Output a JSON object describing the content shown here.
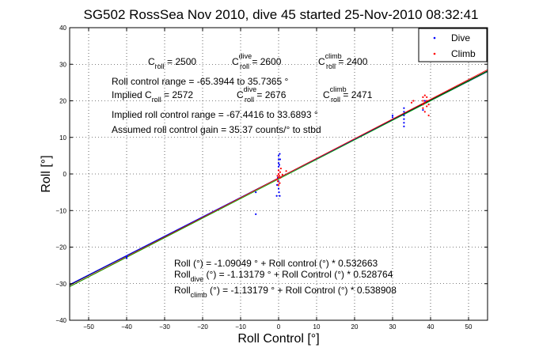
{
  "chart_data": {
    "type": "scatter",
    "title": "SG502 RossSea Nov 2010, dive 45 started 25-Nov-2010 08:32:41",
    "xlabel": "Roll Control [°]",
    "ylabel": "Roll [°]",
    "xlim": [
      -55,
      55
    ],
    "ylim": [
      -40,
      40
    ],
    "xticks": [
      -50,
      -40,
      -30,
      -20,
      -10,
      0,
      10,
      20,
      30,
      40,
      50
    ],
    "yticks": [
      -40,
      -30,
      -20,
      -10,
      0,
      10,
      20,
      30,
      40
    ],
    "grid": true,
    "legend_position": "top-right",
    "legend": [
      {
        "label": "Dive",
        "color": "#0000ff"
      },
      {
        "label": "Climb",
        "color": "#ff0000"
      }
    ],
    "series": [
      {
        "name": "Dive",
        "color": "#0000ff",
        "points": [
          [
            -40,
            -22.5
          ],
          [
            -40,
            -23
          ],
          [
            -6,
            -5
          ],
          [
            -6,
            -11
          ],
          [
            -0.5,
            -6
          ],
          [
            -0.4,
            -3
          ],
          [
            -0.2,
            -1
          ],
          [
            0,
            -4
          ],
          [
            0,
            -2
          ],
          [
            0,
            0
          ],
          [
            0,
            1
          ],
          [
            0,
            2
          ],
          [
            0,
            3
          ],
          [
            0,
            4
          ],
          [
            0,
            5
          ],
          [
            0.3,
            -6
          ],
          [
            0.3,
            5.5
          ],
          [
            0.2,
            2.5
          ],
          [
            0.1,
            -5
          ],
          [
            0.4,
            4
          ],
          [
            30,
            15.5
          ],
          [
            30,
            16
          ],
          [
            33,
            13
          ],
          [
            33,
            14
          ],
          [
            33,
            15
          ],
          [
            33,
            16
          ],
          [
            33,
            17
          ],
          [
            33,
            18
          ],
          [
            38,
            17.5
          ],
          [
            38.5,
            20
          ]
        ]
      },
      {
        "name": "Climb",
        "color": "#ff0000",
        "points": [
          [
            -0.5,
            -1.5
          ],
          [
            -0.3,
            -0.5
          ],
          [
            -0.2,
            -2
          ],
          [
            0,
            -1
          ],
          [
            0,
            -3
          ],
          [
            0,
            0
          ],
          [
            0,
            1
          ],
          [
            0.2,
            -0.5
          ],
          [
            0.3,
            -2.5
          ],
          [
            0.4,
            0.5
          ],
          [
            0.5,
            -1
          ],
          [
            0.6,
            1.5
          ],
          [
            1,
            -0.2
          ],
          [
            2,
            0.8
          ],
          [
            35,
            19.5
          ],
          [
            35.5,
            20
          ],
          [
            38,
            18
          ],
          [
            38,
            19
          ],
          [
            38,
            20
          ],
          [
            38,
            21
          ],
          [
            38.5,
            17
          ],
          [
            38.5,
            19.5
          ],
          [
            38.5,
            21.5
          ],
          [
            39,
            18.5
          ],
          [
            39,
            20
          ],
          [
            39,
            21
          ],
          [
            39.5,
            16
          ],
          [
            39.5,
            19
          ]
        ]
      }
    ],
    "fit_lines": [
      {
        "color": "#000000",
        "intercept": -1.09049,
        "slope": 0.532663
      },
      {
        "color": "#0000ff",
        "intercept": -1.13179,
        "slope": 0.528764
      },
      {
        "color": "#ff0000",
        "intercept": -1.13179,
        "slope": 0.538908
      },
      {
        "color": "#00aa00",
        "intercept": -1.4,
        "slope": 0.535
      }
    ]
  },
  "annotations": {
    "c_roll": {
      "label": "C",
      "sub": "roll",
      "value": " = 2500"
    },
    "c_roll_dive": {
      "label": "C",
      "sup": "dive",
      "sub": "roll",
      "value": " = 2600"
    },
    "c_roll_climb": {
      "label": "C",
      "sup": "climb",
      "sub": "roll",
      "value": " = 2400"
    },
    "roll_range": "Roll control range = -65.3944 to 35.7365 °",
    "implied_prefix": "Implied C",
    "implied_sub": "roll",
    "implied_value": " = 2572",
    "implied_dive": {
      "label": "C",
      "sup": "dive",
      "sub": "roll",
      "value": " = 2676"
    },
    "implied_climb": {
      "label": "C",
      "sup": "climb",
      "sub": "roll",
      "value": " = 2471"
    },
    "implied_range": "Implied roll control range = -67.4416 to 33.6893 °",
    "gain": "Assumed roll control gain = 35.37 counts/° to stbd",
    "fit1": "Roll (°) = -1.09049 ° + Roll control (°) * 0.532663",
    "fit2_prefix": "Roll",
    "fit2_sub": "dive",
    "fit2_rest": " (°) = -1.13179 ° + Roll Control (°) * 0.528764",
    "fit3_prefix": "Roll",
    "fit3_sub": "climb",
    "fit3_rest": " (°) = -1.13179 ° + Roll Control (°) * 0.538908"
  }
}
